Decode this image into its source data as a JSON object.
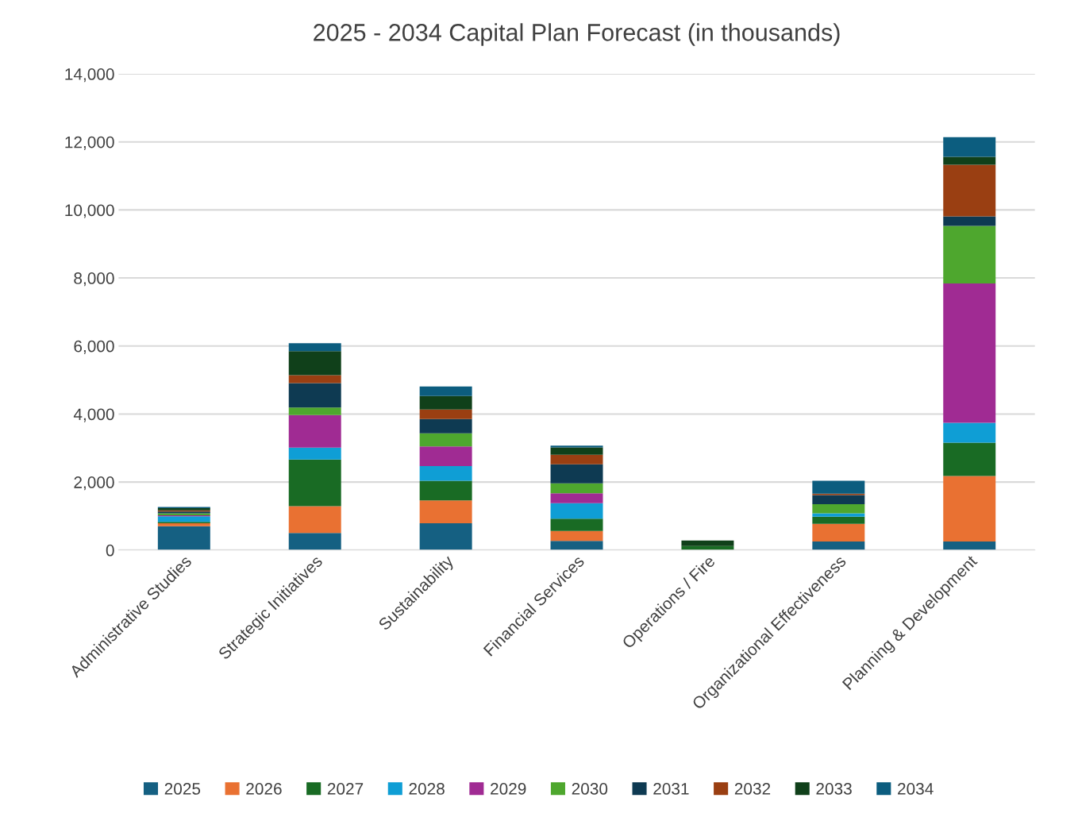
{
  "chart_data": {
    "type": "bar",
    "stacked": true,
    "title": "2025 - 2034 Capital Plan Forecast (in thousands)",
    "categories": [
      "Administrative Studies",
      "Strategic Initiatives",
      "Sustainability",
      "Financial Services",
      "Operations / Fire",
      "Organizational Effectiveness",
      "Planning & Development"
    ],
    "series": [
      {
        "name": "2025",
        "color": "#156082",
        "values": [
          700,
          500,
          790,
          270,
          0,
          250,
          250
        ]
      },
      {
        "name": "2026",
        "color": "#e97132",
        "values": [
          90,
          790,
          670,
          290,
          0,
          520,
          1930
        ]
      },
      {
        "name": "2027",
        "color": "#196b24",
        "values": [
          40,
          1370,
          580,
          360,
          120,
          210,
          980
        ]
      },
      {
        "name": "2028",
        "color": "#0f9ed5",
        "values": [
          160,
          350,
          430,
          460,
          0,
          100,
          580
        ]
      },
      {
        "name": "2029",
        "color": "#a02b93",
        "values": [
          30,
          960,
          580,
          290,
          0,
          0,
          4100
        ]
      },
      {
        "name": "2030",
        "color": "#4ea72e",
        "values": [
          60,
          220,
          380,
          290,
          0,
          270,
          1690
        ]
      },
      {
        "name": "2031",
        "color": "#0e3a52",
        "values": [
          50,
          720,
          420,
          560,
          0,
          270,
          280
        ]
      },
      {
        "name": "2032",
        "color": "#9a3f12",
        "values": [
          40,
          230,
          280,
          280,
          0,
          40,
          1520
        ]
      },
      {
        "name": "2033",
        "color": "#10401a",
        "values": [
          60,
          710,
          400,
          220,
          160,
          0,
          230
        ]
      },
      {
        "name": "2034",
        "color": "#0c5d7f",
        "values": [
          40,
          230,
          280,
          50,
          0,
          380,
          580
        ]
      }
    ],
    "ylim": [
      0,
      14000
    ],
    "yticks": [
      {
        "value": 0,
        "label": "0"
      },
      {
        "value": 2000,
        "label": "2,000"
      },
      {
        "value": 4000,
        "label": "4,000"
      },
      {
        "value": 6000,
        "label": "6,000"
      },
      {
        "value": 8000,
        "label": "8,000"
      },
      {
        "value": 10000,
        "label": "10,000"
      },
      {
        "value": 12000,
        "label": "12,000"
      },
      {
        "value": 14000,
        "label": "14,000"
      }
    ],
    "grid": "y",
    "legend": "bottom"
  }
}
